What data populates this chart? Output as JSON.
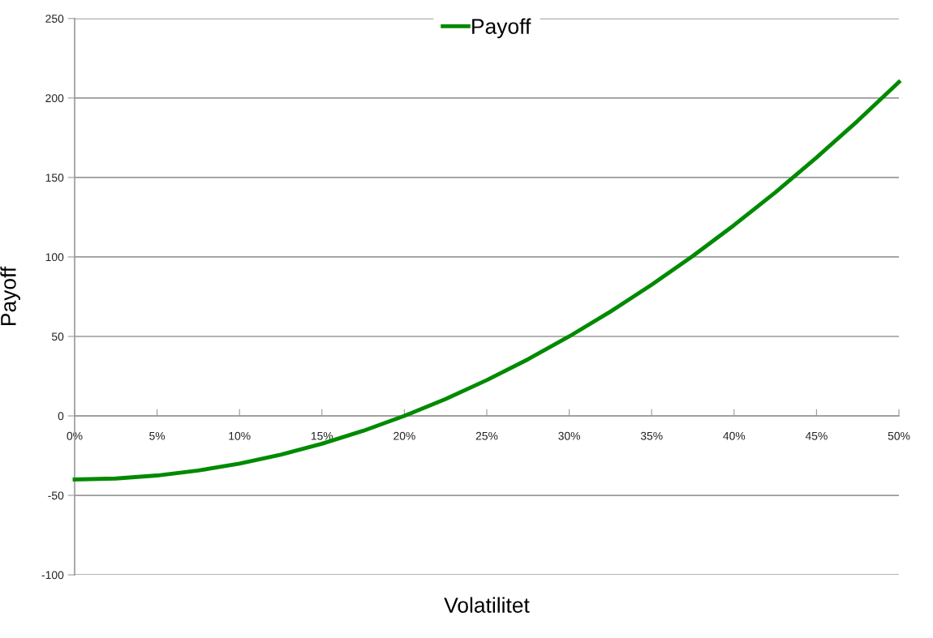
{
  "chart_data": {
    "type": "line",
    "xlabel": "Volatilitet",
    "ylabel": "Payoff",
    "x": [
      0,
      0.025,
      0.05,
      0.075,
      0.1,
      0.125,
      0.15,
      0.175,
      0.2,
      0.225,
      0.25,
      0.275,
      0.3,
      0.325,
      0.35,
      0.375,
      0.4,
      0.425,
      0.45,
      0.475,
      0.5
    ],
    "series": [
      {
        "name": "Payoff",
        "color": "#008a00",
        "values": [
          -40,
          -39.4,
          -37.5,
          -34.4,
          -30,
          -24.4,
          -17.5,
          -9.4,
          0,
          10.6,
          22.5,
          35.6,
          50,
          65.6,
          82.5,
          100.6,
          120,
          140.6,
          162.5,
          185.6,
          210
        ]
      }
    ],
    "xlim": [
      0,
      0.5
    ],
    "xticks": [
      {
        "value": 0,
        "label": "0%"
      },
      {
        "value": 0.05,
        "label": "5%"
      },
      {
        "value": 0.1,
        "label": "10%"
      },
      {
        "value": 0.15,
        "label": "15%"
      },
      {
        "value": 0.2,
        "label": "20%"
      },
      {
        "value": 0.25,
        "label": "25%"
      },
      {
        "value": 0.3,
        "label": "30%"
      },
      {
        "value": 0.35,
        "label": "35%"
      },
      {
        "value": 0.4,
        "label": "40%"
      },
      {
        "value": 0.45,
        "label": "45%"
      },
      {
        "value": 0.5,
        "label": "50%"
      }
    ],
    "ylim": [
      -100,
      250
    ],
    "yticks": [
      -100,
      -50,
      0,
      50,
      100,
      150,
      200,
      250
    ],
    "grid": "y",
    "legend": "top",
    "marker": "none",
    "line_style": "solid"
  }
}
